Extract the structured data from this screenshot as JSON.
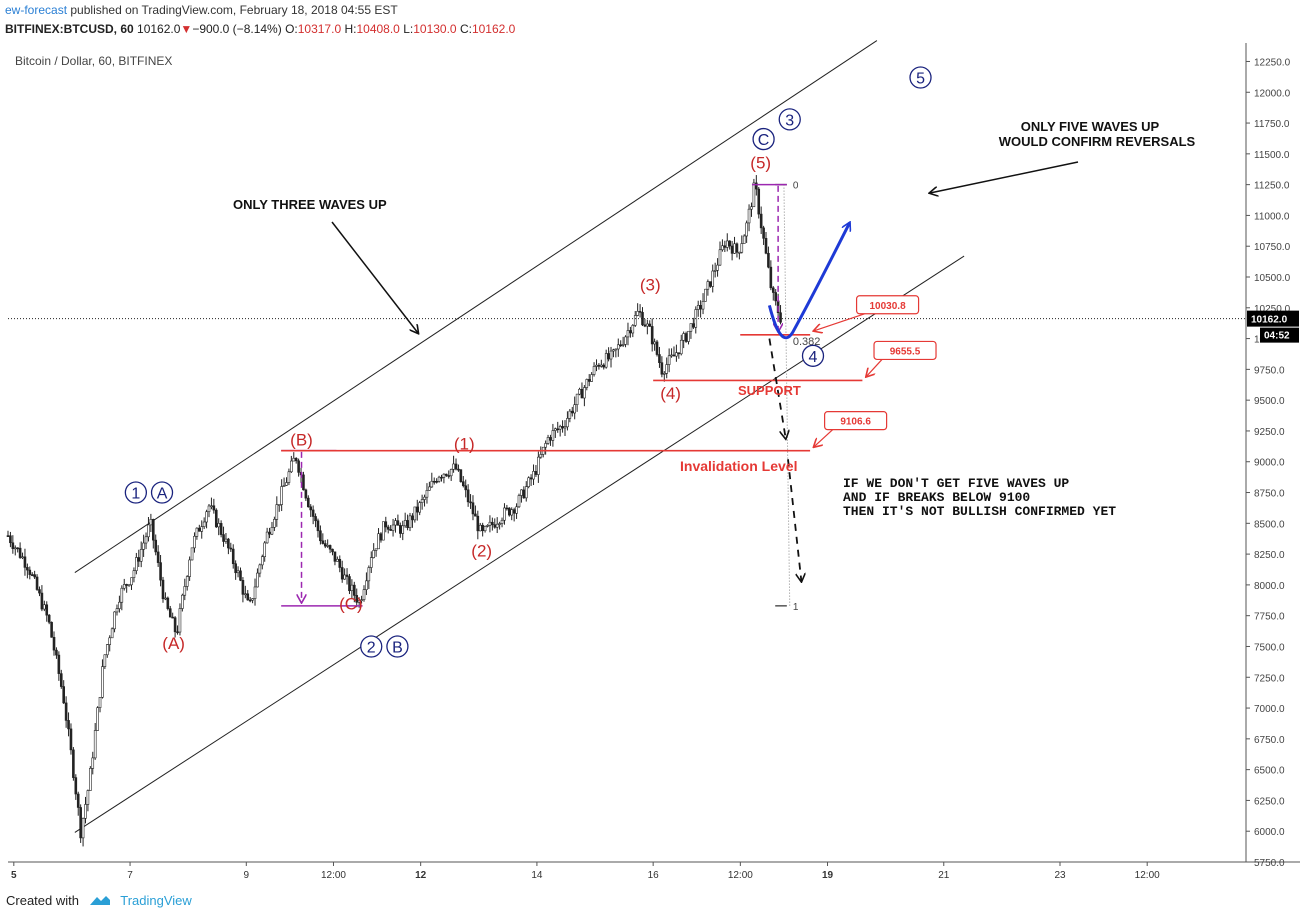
{
  "header": {
    "author": "ew-forecast",
    "published": "published on TradingView.com, February 18, 2018 04:55 EST",
    "symbol": "BITFINEX:BTCUSD, 60",
    "price": "10162.0",
    "change": "−900.0 (−8.14%)",
    "o_label": "O:",
    "o_value": "10317.0",
    "h_label": "H:",
    "h_value": "10408.0",
    "l_label": "L:",
    "l_value": "10130.0",
    "c_label": "C:",
    "c_value": "10162.0"
  },
  "footer": {
    "created_with": "Created with",
    "brand": "TradingView"
  },
  "colors": {
    "wave_red": "#c62828",
    "wave_blue": "#1a237e",
    "level_red": "#e53935",
    "purple": "#9c27b0",
    "arrow_blue": "#1e3ad6"
  },
  "chart_data": {
    "type": "candlestick",
    "title": "Bitcoin / Dollar, 60, BITFINEX",
    "last_price": "10162.0",
    "countdown": "04:52",
    "ylim": [
      5750,
      12400
    ],
    "y_ticks": [
      5750,
      6000,
      6250,
      6500,
      6750,
      7000,
      7250,
      7500,
      7750,
      8000,
      8250,
      8500,
      8750,
      9000,
      9250,
      9500,
      9750,
      10000,
      10250,
      10500,
      10750,
      11000,
      11250,
      11500,
      11750,
      12000,
      12250
    ],
    "y_tick_labels": [
      "5750.0",
      "6000.0",
      "6250.0",
      "6500.0",
      "6750.0",
      "7000.0",
      "7250.0",
      "7500.0",
      "7750.0",
      "8000.0",
      "8250.0",
      "8500.0",
      "8750.0",
      "9000.0",
      "9250.0",
      "9500.0",
      "9750.0",
      "10000.0",
      "10250.0",
      "10500.0",
      "10750.0",
      "11000.0",
      "11250.0",
      "11500.0",
      "11750.0",
      "12000.0",
      "12250.0"
    ],
    "x_ticks": [
      {
        "day": 5,
        "label": "5",
        "bold": true
      },
      {
        "day": 7,
        "label": "7"
      },
      {
        "day": 9,
        "label": "9"
      },
      {
        "day": 10.5,
        "label": "12:00"
      },
      {
        "day": 12,
        "label": "12",
        "bold": true
      },
      {
        "day": 14,
        "label": "14"
      },
      {
        "day": 16,
        "label": "16"
      },
      {
        "day": 17.5,
        "label": "12:00"
      },
      {
        "day": 19,
        "label": "19",
        "bold": true
      },
      {
        "day": 21,
        "label": "21"
      },
      {
        "day": 23,
        "label": "23"
      },
      {
        "day": 24.5,
        "label": "12:00"
      }
    ],
    "xlim_days": [
      4.9,
      26.2
    ],
    "price_path": [
      [
        4.9,
        8400
      ],
      [
        5.25,
        8150
      ],
      [
        5.6,
        7700
      ],
      [
        5.85,
        7100
      ],
      [
        6.05,
        6400
      ],
      [
        6.15,
        6000
      ],
      [
        6.3,
        6400
      ],
      [
        6.55,
        7400
      ],
      [
        6.8,
        7900
      ],
      [
        7.05,
        8100
      ],
      [
        7.35,
        8500
      ],
      [
        7.6,
        7850
      ],
      [
        7.8,
        7600
      ],
      [
        8.05,
        8300
      ],
      [
        8.35,
        8650
      ],
      [
        8.6,
        8400
      ],
      [
        8.85,
        8100
      ],
      [
        9.05,
        7800
      ],
      [
        9.35,
        8400
      ],
      [
        9.65,
        8800
      ],
      [
        9.85,
        9050
      ],
      [
        10.05,
        8700
      ],
      [
        10.3,
        8350
      ],
      [
        10.55,
        8200
      ],
      [
        10.75,
        8000
      ],
      [
        10.95,
        7860
      ],
      [
        11.15,
        8250
      ],
      [
        11.4,
        8500
      ],
      [
        11.7,
        8450
      ],
      [
        12.0,
        8650
      ],
      [
        12.3,
        8900
      ],
      [
        12.6,
        8950
      ],
      [
        12.85,
        8650
      ],
      [
        13.05,
        8400
      ],
      [
        13.35,
        8550
      ],
      [
        13.65,
        8650
      ],
      [
        13.95,
        8900
      ],
      [
        14.2,
        9200
      ],
      [
        14.45,
        9300
      ],
      [
        14.75,
        9550
      ],
      [
        15.05,
        9800
      ],
      [
        15.3,
        9850
      ],
      [
        15.55,
        10050
      ],
      [
        15.75,
        10220
      ],
      [
        15.95,
        10050
      ],
      [
        16.15,
        9750
      ],
      [
        16.35,
        9850
      ],
      [
        16.6,
        10050
      ],
      [
        16.85,
        10300
      ],
      [
        17.05,
        10550
      ],
      [
        17.25,
        10800
      ],
      [
        17.45,
        10700
      ],
      [
        17.6,
        10900
      ],
      [
        17.75,
        11250
      ],
      [
        17.9,
        10800
      ],
      [
        18.05,
        10350
      ],
      [
        18.2,
        10162
      ]
    ],
    "waves": [
      {
        "label": "(A)",
        "day": 7.75,
        "price": 7480,
        "color": "red"
      },
      {
        "label": "(B)",
        "day": 9.95,
        "price": 9130,
        "color": "red"
      },
      {
        "label": "(C)",
        "day": 10.8,
        "price": 7800,
        "color": "red"
      },
      {
        "label": "(1)",
        "day": 12.75,
        "price": 9100,
        "color": "red"
      },
      {
        "label": "(2)",
        "day": 13.05,
        "price": 8230,
        "color": "red"
      },
      {
        "label": "(3)",
        "day": 15.95,
        "price": 10390,
        "color": "red"
      },
      {
        "label": "(4)",
        "day": 16.3,
        "price": 9510,
        "color": "red"
      },
      {
        "label": "(5)",
        "day": 17.85,
        "price": 11380,
        "color": "red"
      },
      {
        "label": "1",
        "day": 7.1,
        "price": 8750,
        "color": "blue",
        "circle": true
      },
      {
        "label": "A",
        "day": 7.55,
        "price": 8750,
        "color": "blue",
        "circle": true
      },
      {
        "label": "2",
        "day": 11.15,
        "price": 7500,
        "color": "blue",
        "circle": true
      },
      {
        "label": "B",
        "day": 11.6,
        "price": 7500,
        "color": "blue",
        "circle": true
      },
      {
        "label": "C",
        "day": 17.9,
        "price": 11620,
        "color": "blue",
        "circle": true
      },
      {
        "label": "3",
        "day": 18.35,
        "price": 11780,
        "color": "blue",
        "circle": true
      },
      {
        "label": "4",
        "day": 18.75,
        "price": 9860,
        "color": "blue",
        "circle": true
      },
      {
        "label": "5",
        "day": 20.6,
        "price": 12120,
        "color": "blue",
        "circle": true
      }
    ],
    "channel": {
      "upper": [
        [
          6.05,
          8100
        ],
        [
          19.85,
          12420
        ]
      ],
      "lower": [
        [
          6.05,
          5990
        ],
        [
          21.35,
          10670
        ]
      ]
    },
    "levels": [
      {
        "label": "10030.8",
        "from_day": 17.5,
        "to_day": 18.7,
        "price": 10030.8,
        "tag_day": 19.5
      },
      {
        "label": "9655.5",
        "from_day": 16.0,
        "to_day": 19.6,
        "price": 9660,
        "tag_day": 19.8
      },
      {
        "label": "9106.6",
        "from_day": 9.6,
        "to_day": 18.7,
        "price": 9090,
        "tag_day": 18.95
      }
    ],
    "fib": {
      "day_from": 18.1,
      "day_to": 18.3,
      "top": 11250,
      "bottom": 7830,
      "r382": 10030.8,
      "label_0": "0",
      "label_382": "0.382",
      "label_1": "1"
    },
    "annotations": {
      "three_waves": "ONLY THREE WAVES UP",
      "five_waves_1": "ONLY FIVE WAVES UP",
      "five_waves_2": "WOULD CONFIRM REVERSALS",
      "support": "SUPPORT",
      "invalidation": "Invalidation Level",
      "note_1": "IF WE DON'T GET FIVE WAVES UP",
      "note_2": "AND IF BREAKS BELOW 9100",
      "note_3": "THEN IT'S NOT BULLISH CONFIRMED YET"
    }
  }
}
